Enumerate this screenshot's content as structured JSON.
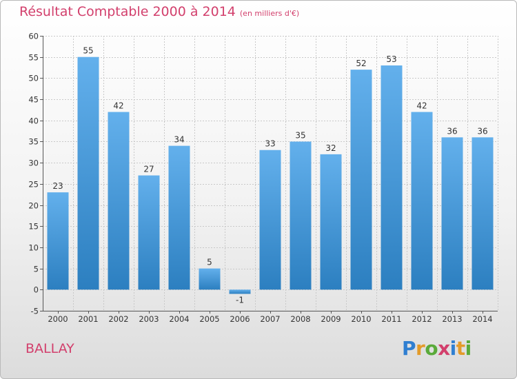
{
  "title": "Résultat Comptable 2000 à 2014",
  "subtitle": "(en milliers d'€)",
  "commune": "BALLAY",
  "logo": {
    "text": "Proxiti",
    "letters": [
      {
        "ch": "P",
        "color": "#2f7fd1"
      },
      {
        "ch": "r",
        "color": "#e39b2a"
      },
      {
        "ch": "o",
        "color": "#5aaa3a"
      },
      {
        "ch": "x",
        "color": "#d23f6c"
      },
      {
        "ch": "i",
        "color": "#2f7fd1"
      },
      {
        "ch": "t",
        "color": "#e39b2a"
      },
      {
        "ch": "i",
        "color": "#5aaa3a"
      }
    ]
  },
  "colors": {
    "bar_top": "#63b0ec",
    "bar_bottom": "#2c7fc0",
    "title": "#d23f6c",
    "grid": "#c8c8c8"
  },
  "chart_data": {
    "type": "bar",
    "categories": [
      "2000",
      "2001",
      "2002",
      "2003",
      "2004",
      "2005",
      "2006",
      "2007",
      "2008",
      "2009",
      "2010",
      "2011",
      "2012",
      "2013",
      "2014"
    ],
    "values": [
      23,
      55,
      42,
      27,
      34,
      5,
      -1,
      33,
      35,
      32,
      52,
      53,
      42,
      36,
      36
    ],
    "ylim": [
      -5,
      60
    ],
    "yticks": [
      -5,
      0,
      5,
      10,
      15,
      20,
      25,
      30,
      35,
      40,
      45,
      50,
      55,
      60
    ],
    "grid": true,
    "title": "Résultat Comptable 2000 à 2014",
    "xlabel": "",
    "ylabel": ""
  }
}
